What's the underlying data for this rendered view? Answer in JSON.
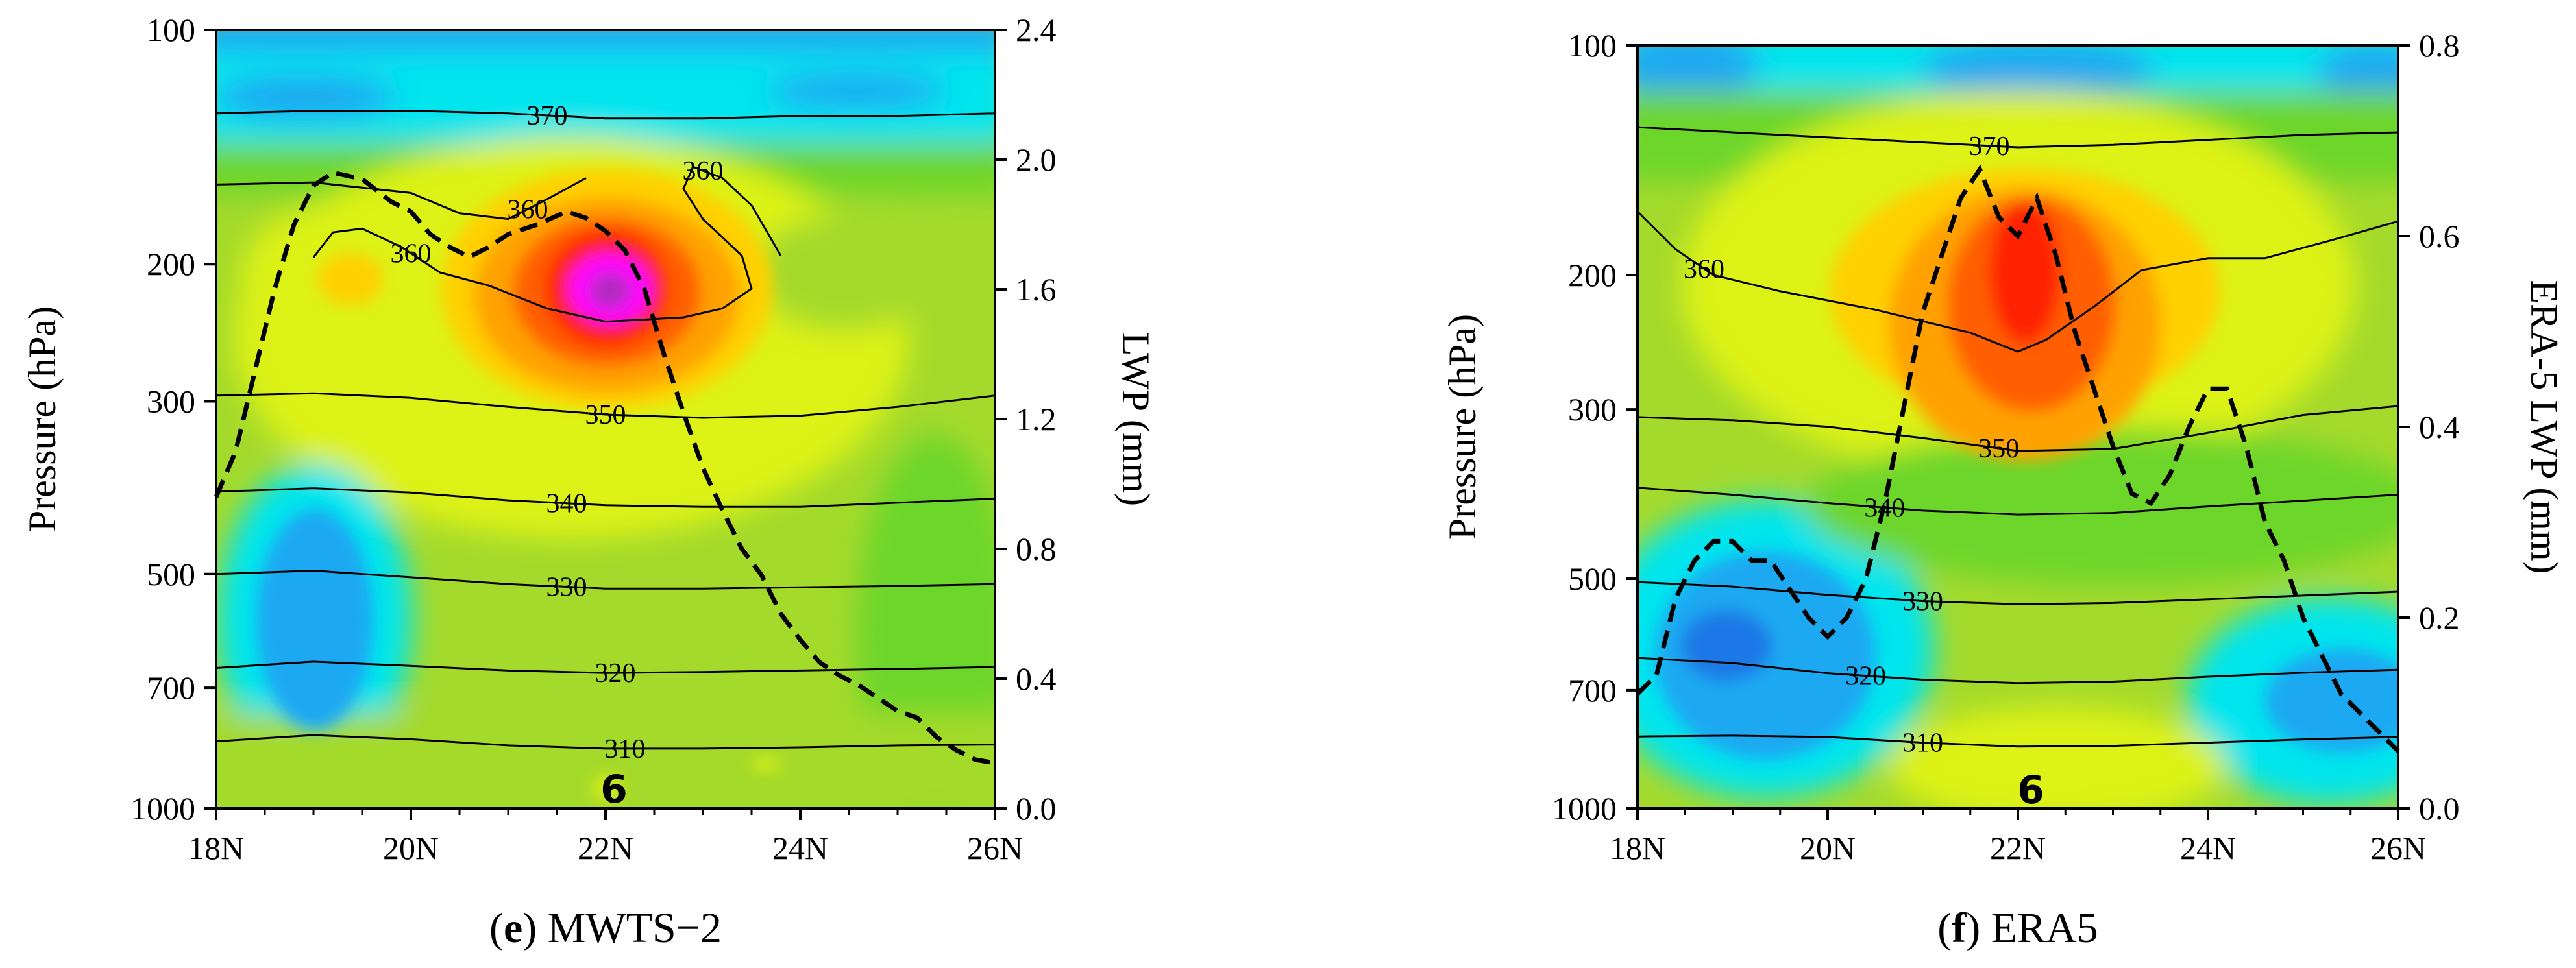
{
  "chart_data": [
    {
      "type": "heatmap",
      "panel": "e",
      "caption_letter": "e",
      "caption_text": "MWTS−2",
      "xlabel": "",
      "ylabel_left": "Pressure (hPa)",
      "ylabel_right": "LWP (mm)",
      "x_ticks": [
        "18N",
        "20N",
        "22N",
        "24N",
        "26N"
      ],
      "xlim": [
        18,
        26
      ],
      "y_left_ticks": [
        "100",
        "200",
        "300",
        "500",
        "700",
        "1000"
      ],
      "y_left_tick_values": [
        100,
        200,
        300,
        500,
        700,
        1000
      ],
      "ylim_left": [
        1000,
        100
      ],
      "y_right_ticks": [
        "0.0",
        "0.4",
        "0.8",
        "1.2",
        "1.6",
        "2.0",
        "2.4"
      ],
      "y_right_tick_values": [
        0,
        0.4,
        0.8,
        1.2,
        1.6,
        2.0,
        2.4
      ],
      "ylim_right": [
        0,
        2.4
      ],
      "marker_label": "6",
      "marker_lat": 22,
      "contour_lines": [
        {
          "label": "310",
          "label_lat": 22.2,
          "points": [
            [
              18,
              820
            ],
            [
              19,
              805
            ],
            [
              20,
              815
            ],
            [
              21,
              830
            ],
            [
              22,
              838
            ],
            [
              23,
              838
            ],
            [
              24,
              835
            ],
            [
              25,
              830
            ],
            [
              26,
              828
            ]
          ]
        },
        {
          "label": "320",
          "label_lat": 22.1,
          "points": [
            [
              18,
              660
            ],
            [
              19,
              648
            ],
            [
              20,
              656
            ],
            [
              21,
              665
            ],
            [
              22,
              670
            ],
            [
              23,
              668
            ],
            [
              24,
              665
            ],
            [
              25,
              662
            ],
            [
              26,
              658
            ]
          ]
        },
        {
          "label": "330",
          "label_lat": 21.6,
          "points": [
            [
              18,
              500
            ],
            [
              19,
              495
            ],
            [
              20,
              505
            ],
            [
              21,
              515
            ],
            [
              22,
              522
            ],
            [
              23,
              522
            ],
            [
              24,
              520
            ],
            [
              25,
              518
            ],
            [
              26,
              515
            ]
          ]
        },
        {
          "label": "340",
          "label_lat": 21.6,
          "points": [
            [
              18,
              392
            ],
            [
              19,
              388
            ],
            [
              20,
              393
            ],
            [
              21,
              402
            ],
            [
              22,
              408
            ],
            [
              23,
              410
            ],
            [
              24,
              410
            ],
            [
              25,
              405
            ],
            [
              26,
              400
            ]
          ]
        },
        {
          "label": "350",
          "label_lat": 22.0,
          "points": [
            [
              18,
              295
            ],
            [
              19,
              293
            ],
            [
              20,
              297
            ],
            [
              21,
              305
            ],
            [
              22,
              312
            ],
            [
              23,
              315
            ],
            [
              24,
              313
            ],
            [
              25,
              305
            ],
            [
              26,
              295
            ]
          ]
        },
        {
          "label": "370",
          "label_lat": 21.4,
          "points": [
            [
              18,
              128
            ],
            [
              19,
              127
            ],
            [
              20,
              127
            ],
            [
              21,
              128
            ],
            [
              22,
              130
            ],
            [
              23,
              130
            ],
            [
              24,
              129
            ],
            [
              25,
              129
            ],
            [
              26,
              128
            ]
          ]
        },
        {
          "label": "360",
          "label_lat": 21.2,
          "points": [
            [
              18,
              158
            ],
            [
              19,
              157
            ],
            [
              20,
              162
            ],
            [
              20.5,
              172
            ],
            [
              21,
              175
            ],
            [
              21.4,
              165
            ],
            [
              21.8,
              155
            ]
          ]
        },
        {
          "label": "360",
          "label_lat": 20.0,
          "points": [
            [
              19.0,
              196
            ],
            [
              19.2,
              182
            ],
            [
              19.5,
              180
            ],
            [
              19.9,
              190
            ],
            [
              20.3,
              205
            ],
            [
              20.8,
              213
            ],
            [
              21.4,
              228
            ],
            [
              22.0,
              237
            ],
            [
              22.8,
              234
            ],
            [
              23.2,
              228
            ],
            [
              23.5,
              215
            ],
            [
              23.4,
              195
            ],
            [
              23.0,
              175
            ],
            [
              22.8,
              160
            ],
            [
              22.9,
              150
            ]
          ]
        },
        {
          "label": "360",
          "label_lat": 23.0,
          "points": [
            [
              22.9,
              150
            ],
            [
              23.2,
              155
            ],
            [
              23.5,
              168
            ],
            [
              23.8,
              195
            ]
          ]
        }
      ],
      "lwp_curve": {
        "lat": [
          18.0,
          18.2,
          18.4,
          18.6,
          18.8,
          19.0,
          19.2,
          19.5,
          19.8,
          20.0,
          20.2,
          20.4,
          20.6,
          20.8,
          21.0,
          21.3,
          21.6,
          21.8,
          22.0,
          22.2,
          22.4,
          22.6,
          22.8,
          23.0,
          23.2,
          23.4,
          23.6,
          23.8,
          24.0,
          24.2,
          24.4,
          24.6,
          24.8,
          25.0,
          25.2,
          25.4,
          25.6,
          25.8,
          26.0
        ],
        "mm": [
          0.96,
          1.1,
          1.35,
          1.6,
          1.8,
          1.92,
          1.96,
          1.94,
          1.87,
          1.84,
          1.77,
          1.73,
          1.7,
          1.73,
          1.77,
          1.8,
          1.84,
          1.82,
          1.78,
          1.72,
          1.6,
          1.4,
          1.22,
          1.05,
          0.92,
          0.8,
          0.72,
          0.6,
          0.52,
          0.45,
          0.41,
          0.38,
          0.34,
          0.3,
          0.28,
          0.22,
          0.18,
          0.15,
          0.14
        ]
      },
      "shading": {
        "background": "#a4da2c",
        "levels": [
          "#00e5ee",
          "#1ea9f2",
          "#6dd62a",
          "#a4da2c",
          "#ddf216",
          "#ffd000",
          "#ffa200",
          "#ff5e00",
          "#ff2400",
          "#ff00ff",
          "#b02cc0"
        ]
      }
    },
    {
      "type": "heatmap",
      "panel": "f",
      "caption_letter": "f",
      "caption_text": "ERA5",
      "xlabel": "",
      "ylabel_left": "Pressure (hPa)",
      "ylabel_right": "ERA-5 LWP (mm)",
      "x_ticks": [
        "18N",
        "20N",
        "22N",
        "24N",
        "26N"
      ],
      "xlim": [
        18,
        26
      ],
      "y_left_ticks": [
        "100",
        "200",
        "300",
        "500",
        "700",
        "1000"
      ],
      "y_left_tick_values": [
        100,
        200,
        300,
        500,
        700,
        1000
      ],
      "ylim_left": [
        1000,
        100
      ],
      "y_right_ticks": [
        "0.0",
        "0.2",
        "0.4",
        "0.6",
        "0.8"
      ],
      "y_right_tick_values": [
        0,
        0.2,
        0.4,
        0.6,
        0.8
      ],
      "ylim_right": [
        0,
        0.8
      ],
      "marker_label": "6",
      "marker_lat": 22,
      "contour_lines": [
        {
          "label": "310",
          "label_lat": 21.0,
          "points": [
            [
              18,
              805
            ],
            [
              19,
              803
            ],
            [
              20,
              806
            ],
            [
              21,
              820
            ],
            [
              22,
              830
            ],
            [
              23,
              828
            ],
            [
              24,
              820
            ],
            [
              25,
              812
            ],
            [
              26,
              806
            ]
          ]
        },
        {
          "label": "320",
          "label_lat": 20.4,
          "points": [
            [
              18,
              635
            ],
            [
              19,
              645
            ],
            [
              20,
              665
            ],
            [
              21,
              678
            ],
            [
              22,
              685
            ],
            [
              23,
              682
            ],
            [
              24,
              672
            ],
            [
              25,
              664
            ],
            [
              26,
              658
            ]
          ]
        },
        {
          "label": "330",
          "label_lat": 21.0,
          "points": [
            [
              18,
              505
            ],
            [
              19,
              512
            ],
            [
              20,
              525
            ],
            [
              21,
              535
            ],
            [
              22,
              540
            ],
            [
              23,
              538
            ],
            [
              24,
              532
            ],
            [
              25,
              526
            ],
            [
              26,
              520
            ]
          ]
        },
        {
          "label": "340",
          "label_lat": 20.6,
          "points": [
            [
              18,
              380
            ],
            [
              19,
              388
            ],
            [
              20,
              398
            ],
            [
              21,
              407
            ],
            [
              22,
              412
            ],
            [
              23,
              410
            ],
            [
              24,
              402
            ],
            [
              25,
              395
            ],
            [
              26,
              388
            ]
          ]
        },
        {
          "label": "350",
          "label_lat": 21.8,
          "points": [
            [
              18,
              307
            ],
            [
              19,
              310
            ],
            [
              20,
              316
            ],
            [
              21,
              327
            ],
            [
              22,
              340
            ],
            [
              23,
              338
            ],
            [
              24,
              322
            ],
            [
              25,
              305
            ],
            [
              26,
              297
            ]
          ]
        },
        {
          "label": "370",
          "label_lat": 21.7,
          "points": [
            [
              18,
              128
            ],
            [
              19,
              130
            ],
            [
              20,
              132
            ],
            [
              21,
              134
            ],
            [
              22,
              136
            ],
            [
              23,
              135
            ],
            [
              24,
              133
            ],
            [
              25,
              131
            ],
            [
              26,
              130
            ]
          ]
        },
        {
          "label": "360",
          "label_lat": 18.7,
          "points": [
            [
              18,
              165
            ],
            [
              18.4,
              185
            ],
            [
              18.8,
              200
            ],
            [
              19.5,
              210
            ],
            [
              20.5,
              222
            ],
            [
              21.5,
              238
            ],
            [
              22.0,
              252
            ],
            [
              22.3,
              243
            ],
            [
              22.8,
              220
            ],
            [
              23.3,
              197
            ],
            [
              24.0,
              190
            ],
            [
              24.6,
              190
            ],
            [
              25.3,
              180
            ],
            [
              26,
              170
            ]
          ]
        }
      ],
      "lwp_curve": {
        "lat": [
          18.0,
          18.2,
          18.4,
          18.6,
          18.8,
          19.0,
          19.2,
          19.4,
          19.6,
          19.8,
          20.0,
          20.2,
          20.4,
          20.6,
          20.8,
          21.0,
          21.2,
          21.4,
          21.6,
          21.8,
          22.0,
          22.2,
          22.4,
          22.6,
          22.8,
          23.0,
          23.2,
          23.4,
          23.6,
          23.8,
          24.0,
          24.2,
          24.4,
          24.6,
          24.8,
          25.0,
          25.2,
          25.4,
          25.6,
          25.8,
          26.0
        ],
        "mm": [
          0.12,
          0.14,
          0.22,
          0.26,
          0.28,
          0.28,
          0.26,
          0.26,
          0.23,
          0.2,
          0.18,
          0.2,
          0.24,
          0.32,
          0.42,
          0.52,
          0.58,
          0.64,
          0.67,
          0.62,
          0.6,
          0.64,
          0.58,
          0.5,
          0.44,
          0.38,
          0.33,
          0.32,
          0.35,
          0.4,
          0.44,
          0.44,
          0.38,
          0.3,
          0.26,
          0.2,
          0.16,
          0.12,
          0.1,
          0.08,
          0.06
        ]
      },
      "shading": {
        "background": "#a4da2c",
        "levels": [
          "#00e5ee",
          "#1ea9f2",
          "#6dd62a",
          "#a4da2c",
          "#ddf216",
          "#ffd000",
          "#ffa200",
          "#ff5e00",
          "#ff2400"
        ]
      }
    }
  ]
}
